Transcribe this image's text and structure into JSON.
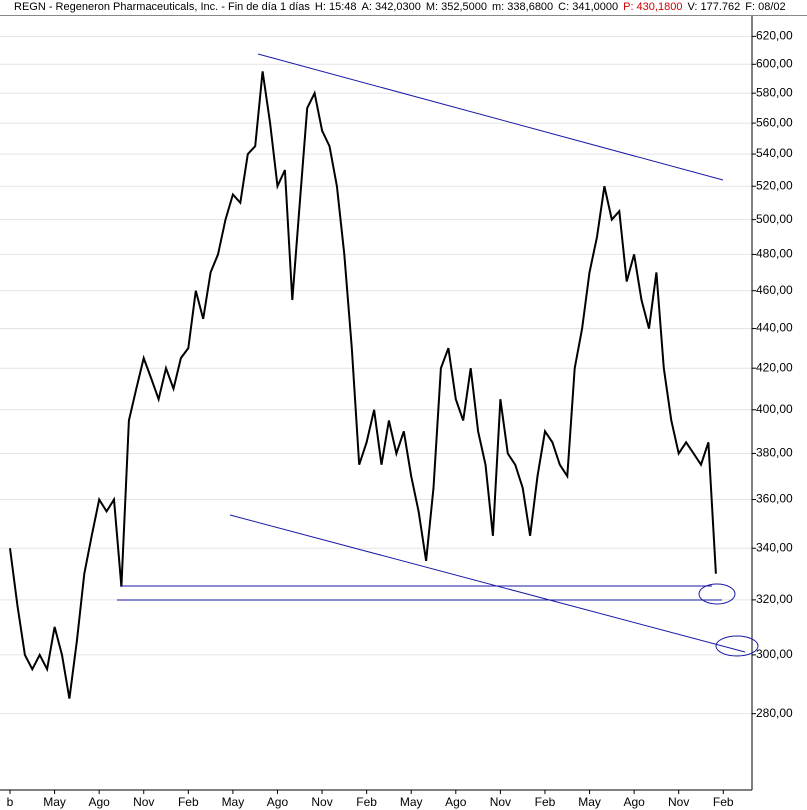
{
  "header": {
    "items": [
      "REGN - Regeneron Pharmaceuticals, Inc. - Fin de día 1 días",
      "H: 15:48",
      "A: 342,0300",
      "M: 352,5000",
      "m: 338,6800",
      "C: 341,0000",
      "P: 430,1800",
      "V: 177.762",
      "F: 08/02"
    ]
  },
  "chart_data": {
    "type": "line",
    "color": "#000000",
    "log_scale": true,
    "categories": [
      "b",
      null,
      null,
      null,
      null,
      null,
      "May",
      null,
      null,
      null,
      null,
      null,
      "Ago",
      null,
      null,
      null,
      null,
      null,
      "Nov",
      null,
      null,
      null,
      null,
      null,
      "Feb",
      null,
      null,
      null,
      null,
      null,
      "May",
      null,
      null,
      null,
      null,
      null,
      "Ago",
      null,
      null,
      null,
      null,
      null,
      "Nov",
      null,
      null,
      null,
      null,
      null,
      "Feb",
      null,
      null,
      null,
      null,
      null,
      "May",
      null,
      null,
      null,
      null,
      null,
      "Ago",
      null,
      null,
      null,
      null,
      null,
      "Nov",
      null,
      null,
      null,
      null,
      null,
      "Feb",
      null,
      null,
      null,
      null,
      null,
      "May",
      null,
      null,
      null,
      null,
      null,
      "Ago",
      null,
      null,
      null,
      null,
      null,
      "Nov",
      null,
      null,
      null,
      null,
      null,
      "Feb"
    ],
    "values": [
      340,
      318,
      300,
      295,
      300,
      295,
      310,
      300,
      285,
      305,
      330,
      345,
      360,
      355,
      360,
      325,
      395,
      410,
      425,
      415,
      405,
      420,
      410,
      425,
      430,
      460,
      445,
      470,
      480,
      500,
      515,
      510,
      540,
      545,
      595,
      560,
      520,
      530,
      455,
      510,
      570,
      580,
      555,
      545,
      520,
      480,
      430,
      375,
      385,
      400,
      375,
      395,
      380,
      390,
      370,
      355,
      335,
      365,
      420,
      430,
      405,
      395,
      420,
      390,
      375,
      345,
      405,
      380,
      375,
      365,
      345,
      370,
      390,
      385,
      375,
      370,
      420,
      440,
      470,
      490,
      520,
      500,
      505,
      465,
      480,
      455,
      440,
      470,
      420,
      395,
      380,
      385,
      380,
      375,
      385,
      330,
      null
    ],
    "ylim": [
      256,
      635
    ],
    "yticks": [
      {
        "value": 280,
        "label": "280,00"
      },
      {
        "value": 300,
        "label": "300,00"
      },
      {
        "value": 320,
        "label": "320,00"
      },
      {
        "value": 340,
        "label": "340,00"
      },
      {
        "value": 360,
        "label": "360,00"
      },
      {
        "value": 380,
        "label": "380,00"
      },
      {
        "value": 400,
        "label": "400,00"
      },
      {
        "value": 420,
        "label": "420,00"
      },
      {
        "value": 440,
        "label": "440,00"
      },
      {
        "value": 460,
        "label": "460,00"
      },
      {
        "value": 480,
        "label": "480,00"
      },
      {
        "value": 500,
        "label": "500,00"
      },
      {
        "value": 520,
        "label": "520,00"
      },
      {
        "value": 540,
        "label": "540,00"
      },
      {
        "value": 560,
        "label": "560,00"
      },
      {
        "value": 580,
        "label": "580,00"
      },
      {
        "value": 600,
        "label": "600,00"
      },
      {
        "value": 620,
        "label": "620,00"
      }
    ]
  }
}
